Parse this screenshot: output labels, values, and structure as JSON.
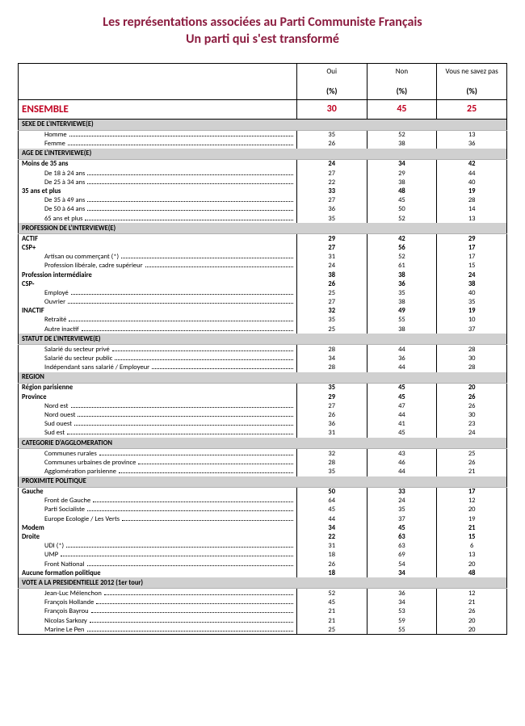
{
  "title_line1": "Les représentations associées au Parti Communiste Français",
  "title_line2": "Un parti qui s'est transformé",
  "columns": [
    "Oui",
    "Non",
    "Vous ne savez pas"
  ],
  "unit": "(%)",
  "ensemble": {
    "label": "ENSEMBLE",
    "values": [
      30,
      45,
      25
    ]
  },
  "colors": {
    "accent": "#8c1d40",
    "ensemble": "#c00020",
    "section_bg": "#d0d0d0"
  },
  "sections": [
    {
      "header": "SEXE DE L'INTERVIEWE(E)",
      "rows": [
        {
          "label": "Homme",
          "indent": 1,
          "bold": false,
          "values": [
            35,
            52,
            13
          ]
        },
        {
          "label": "Femme",
          "indent": 1,
          "bold": false,
          "values": [
            26,
            38,
            36
          ]
        }
      ]
    },
    {
      "header": "AGE DE L'INTERVIEWE(E)",
      "rows": [
        {
          "label": "Moins de 35 ans",
          "indent": 0,
          "bold": true,
          "values": [
            24,
            34,
            42
          ]
        },
        {
          "label": "De 18 à 24 ans",
          "indent": 1,
          "bold": false,
          "values": [
            27,
            29,
            44
          ]
        },
        {
          "label": "De 25 à 34 ans",
          "indent": 1,
          "bold": false,
          "values": [
            22,
            38,
            40
          ]
        },
        {
          "label": "35 ans et plus",
          "indent": 0,
          "bold": true,
          "values": [
            33,
            48,
            19
          ]
        },
        {
          "label": "De 35 à 49 ans",
          "indent": 1,
          "bold": false,
          "values": [
            27,
            45,
            28
          ]
        },
        {
          "label": "De 50 à 64 ans",
          "indent": 1,
          "bold": false,
          "values": [
            36,
            50,
            14
          ]
        },
        {
          "label": "65 ans et plus",
          "indent": 1,
          "bold": false,
          "values": [
            35,
            52,
            13
          ]
        }
      ]
    },
    {
      "header": "PROFESSION DE L'INTERVIEWE(E)",
      "rows": [
        {
          "label": "ACTIF",
          "indent": 0,
          "bold": true,
          "values": [
            29,
            42,
            29
          ]
        },
        {
          "label": "CSP+",
          "indent": 0,
          "bold": true,
          "values": [
            27,
            56,
            17
          ]
        },
        {
          "label": "Artisan ou commerçant (*)",
          "indent": 1,
          "bold": false,
          "values": [
            31,
            52,
            17
          ]
        },
        {
          "label": "Profession libérale, cadre supérieur",
          "indent": 1,
          "bold": false,
          "values": [
            24,
            61,
            15
          ]
        },
        {
          "label": "Profession intermédiaire",
          "indent": 0,
          "bold": true,
          "values": [
            38,
            38,
            24
          ]
        },
        {
          "label": "CSP-",
          "indent": 0,
          "bold": true,
          "values": [
            26,
            36,
            38
          ]
        },
        {
          "label": "Employé",
          "indent": 1,
          "bold": false,
          "values": [
            25,
            35,
            40
          ]
        },
        {
          "label": "Ouvrier",
          "indent": 1,
          "bold": false,
          "values": [
            27,
            38,
            35
          ]
        },
        {
          "label": "INACTIF",
          "indent": 0,
          "bold": true,
          "values": [
            32,
            49,
            19
          ]
        },
        {
          "label": "Retraité",
          "indent": 1,
          "bold": false,
          "values": [
            35,
            55,
            10
          ]
        },
        {
          "label": "Autre inactif",
          "indent": 1,
          "bold": false,
          "values": [
            25,
            38,
            37
          ]
        }
      ]
    },
    {
      "header": "STATUT DE L'INTERVIEWE(E)",
      "rows": [
        {
          "label": "Salarié du secteur privé",
          "indent": 1,
          "bold": false,
          "values": [
            28,
            44,
            28
          ]
        },
        {
          "label": "Salarié du secteur public",
          "indent": 1,
          "bold": false,
          "values": [
            34,
            36,
            30
          ]
        },
        {
          "label": "Indépendant sans salarié / Employeur",
          "indent": 1,
          "bold": false,
          "values": [
            28,
            44,
            28
          ]
        }
      ]
    },
    {
      "header": "REGION",
      "rows": [
        {
          "label": "Région parisienne",
          "indent": 0,
          "bold": true,
          "values": [
            35,
            45,
            20
          ]
        },
        {
          "label": "Province",
          "indent": 0,
          "bold": true,
          "values": [
            29,
            45,
            26
          ]
        },
        {
          "label": "Nord est",
          "indent": 1,
          "bold": false,
          "values": [
            27,
            47,
            26
          ]
        },
        {
          "label": "Nord ouest",
          "indent": 1,
          "bold": false,
          "values": [
            26,
            44,
            30
          ]
        },
        {
          "label": "Sud ouest",
          "indent": 1,
          "bold": false,
          "values": [
            36,
            41,
            23
          ]
        },
        {
          "label": "Sud est",
          "indent": 1,
          "bold": false,
          "values": [
            31,
            45,
            24
          ]
        }
      ]
    },
    {
      "header": "CATEGORIE D'AGGLOMERATION",
      "rows": [
        {
          "label": "Communes rurales",
          "indent": 1,
          "bold": false,
          "values": [
            32,
            43,
            25
          ]
        },
        {
          "label": "Communes urbaines de province",
          "indent": 1,
          "bold": false,
          "values": [
            28,
            46,
            26
          ]
        },
        {
          "label": "Agglomération parisienne",
          "indent": 1,
          "bold": false,
          "values": [
            35,
            44,
            21
          ]
        }
      ]
    },
    {
      "header": "PROXIMITE POLITIQUE",
      "rows": [
        {
          "label": "Gauche",
          "indent": 0,
          "bold": true,
          "values": [
            50,
            33,
            17
          ]
        },
        {
          "label": "Front de Gauche",
          "indent": 1,
          "bold": false,
          "values": [
            64,
            24,
            12
          ]
        },
        {
          "label": "Parti Socialiste",
          "indent": 1,
          "bold": false,
          "values": [
            45,
            35,
            20
          ]
        },
        {
          "label": "Europe Ecologie / Les Verts",
          "indent": 1,
          "bold": false,
          "values": [
            44,
            37,
            19
          ]
        },
        {
          "label": "Modem",
          "indent": 0,
          "bold": true,
          "values": [
            34,
            45,
            21
          ]
        },
        {
          "label": "Droite",
          "indent": 0,
          "bold": true,
          "values": [
            22,
            63,
            15
          ]
        },
        {
          "label": "UDI (*)",
          "indent": 1,
          "bold": false,
          "values": [
            31,
            63,
            6
          ]
        },
        {
          "label": "UMP",
          "indent": 1,
          "bold": false,
          "values": [
            18,
            69,
            13
          ]
        },
        {
          "label": "Front National",
          "indent": 1,
          "bold": false,
          "values": [
            26,
            54,
            20
          ]
        },
        {
          "label": "Aucune formation politique",
          "indent": 0,
          "bold": true,
          "values": [
            18,
            34,
            48
          ]
        }
      ]
    },
    {
      "header": "VOTE A LA PRESIDENTIELLE 2012 (1er tour)",
      "rows": [
        {
          "label": "Jean-Luc Mélenchon",
          "indent": 1,
          "bold": false,
          "values": [
            52,
            36,
            12
          ]
        },
        {
          "label": "François Hollande",
          "indent": 1,
          "bold": false,
          "values": [
            45,
            34,
            21
          ]
        },
        {
          "label": "François Bayrou",
          "indent": 1,
          "bold": false,
          "values": [
            21,
            53,
            26
          ]
        },
        {
          "label": "Nicolas Sarkozy",
          "indent": 1,
          "bold": false,
          "values": [
            21,
            59,
            20
          ]
        },
        {
          "label": "Marine Le Pen",
          "indent": 1,
          "bold": false,
          "values": [
            25,
            55,
            20
          ]
        }
      ]
    }
  ]
}
